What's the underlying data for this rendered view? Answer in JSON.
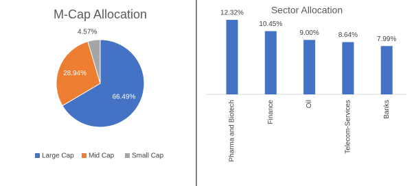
{
  "chart_data": [
    {
      "type": "pie",
      "title": "M-Cap Allocation",
      "categories": [
        "Large Cap",
        "Mid Cap",
        "Small Cap"
      ],
      "values": [
        66.49,
        28.94,
        4.57
      ],
      "value_labels": [
        "66.49%",
        "28.94%",
        "4.57%"
      ],
      "colors": [
        "#4472c4",
        "#ed7d31",
        "#a5a5a5"
      ],
      "legend": "bottom"
    },
    {
      "type": "bar",
      "title": "Sector Allocation",
      "categories": [
        "Pharma and Biotech",
        "Finance",
        "Oil",
        "Telecom-Services",
        "Banks"
      ],
      "values": [
        12.32,
        10.45,
        9.0,
        8.64,
        7.99
      ],
      "value_labels": [
        "12.32%",
        "10.45%",
        "9.00%",
        "8.64%",
        "7.99%"
      ],
      "color": "#4472c4"
    }
  ]
}
